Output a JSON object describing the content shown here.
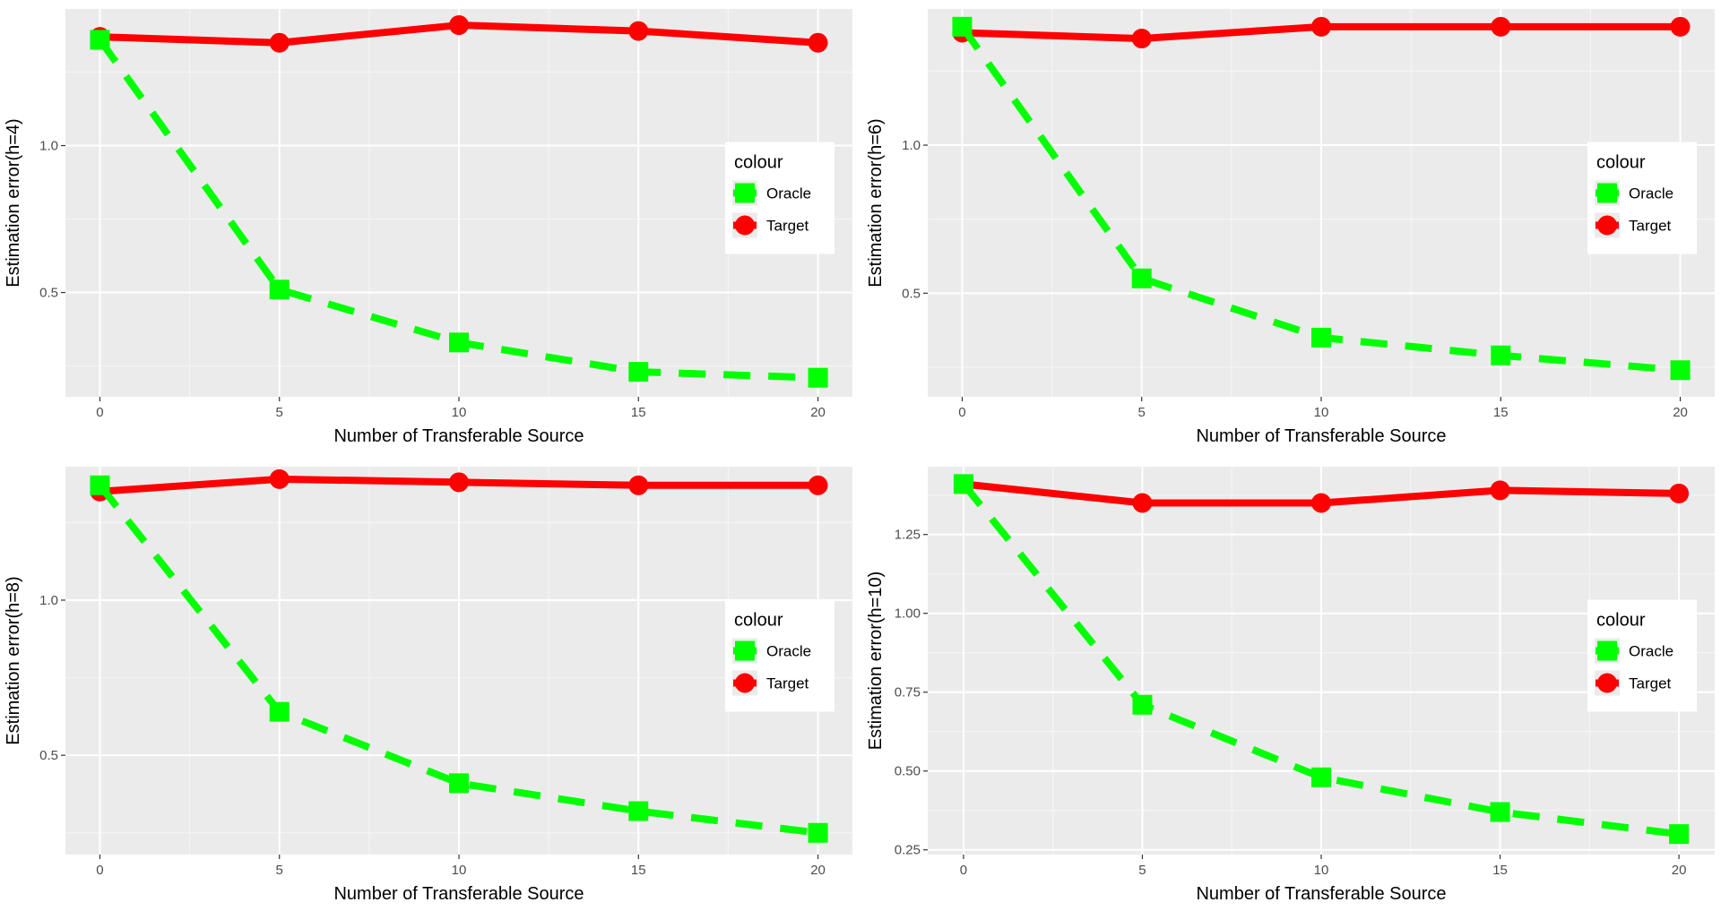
{
  "colors": {
    "oracle": "#00ff00",
    "target": "#ff0000",
    "panel_bg": "#ebebeb",
    "grid_major": "#ffffff",
    "grid_minor": "#f5f5f5"
  },
  "legend": {
    "title": "colour",
    "entries": [
      "Oracle",
      "Target"
    ]
  },
  "chart_data": [
    {
      "type": "line",
      "xlabel": "Number of Transferable Source",
      "ylabel": "Estimation error(h=4)",
      "x": [
        0,
        5,
        10,
        15,
        20
      ],
      "xticks": [
        "0",
        "5",
        "10",
        "15",
        "20"
      ],
      "xlim": [
        -0.96,
        20.96
      ],
      "yticks": [
        0.5,
        1.0
      ],
      "ytick_labels": [
        "0.5",
        "1.0"
      ],
      "ylim": [
        0.145,
        1.465
      ],
      "grid": true,
      "legend": "right",
      "series": [
        {
          "name": "Target",
          "values": [
            1.37,
            1.35,
            1.41,
            1.39,
            1.35
          ]
        },
        {
          "name": "Oracle",
          "values": [
            1.36,
            0.51,
            0.33,
            0.23,
            0.21
          ]
        }
      ]
    },
    {
      "type": "line",
      "xlabel": "Number of Transferable Source",
      "ylabel": "Estimation error(h=6)",
      "x": [
        0,
        5,
        10,
        15,
        20
      ],
      "xticks": [
        "0",
        "5",
        "10",
        "15",
        "20"
      ],
      "xlim": [
        -0.96,
        20.96
      ],
      "yticks": [
        0.5,
        1.0
      ],
      "ytick_labels": [
        "0.5",
        "1.0"
      ],
      "ylim": [
        0.15,
        1.46
      ],
      "grid": true,
      "legend": "right",
      "series": [
        {
          "name": "Target",
          "values": [
            1.38,
            1.36,
            1.4,
            1.4,
            1.4
          ]
        },
        {
          "name": "Oracle",
          "values": [
            1.4,
            0.55,
            0.35,
            0.29,
            0.24
          ]
        }
      ]
    },
    {
      "type": "line",
      "xlabel": "Number of Transferable Source",
      "ylabel": "Estimation error(h=8)",
      "x": [
        0,
        5,
        10,
        15,
        20
      ],
      "xticks": [
        "0",
        "5",
        "10",
        "15",
        "20"
      ],
      "xlim": [
        -0.96,
        20.96
      ],
      "yticks": [
        0.5,
        1.0
      ],
      "ytick_labels": [
        "0.5",
        "1.0"
      ],
      "ylim": [
        0.18,
        1.43
      ],
      "grid": true,
      "legend": "right",
      "series": [
        {
          "name": "Target",
          "values": [
            1.35,
            1.39,
            1.38,
            1.37,
            1.37
          ]
        },
        {
          "name": "Oracle",
          "values": [
            1.37,
            0.64,
            0.41,
            0.32,
            0.25
          ]
        }
      ]
    },
    {
      "type": "line",
      "xlabel": "Number of Transferable Source",
      "ylabel": "Estimation error(h=10)",
      "x": [
        0,
        5,
        10,
        15,
        20
      ],
      "xticks": [
        "0",
        "5",
        "10",
        "15",
        "20"
      ],
      "xlim": [
        -1.0,
        21.0
      ],
      "yticks": [
        0.25,
        0.5,
        0.75,
        1.0,
        1.25
      ],
      "ytick_labels": [
        "0.25",
        "0.50",
        "0.75",
        "1.00",
        "1.25"
      ],
      "ylim": [
        0.235,
        1.465
      ],
      "grid": true,
      "legend": "right",
      "series": [
        {
          "name": "Target",
          "values": [
            1.41,
            1.35,
            1.35,
            1.39,
            1.38
          ]
        },
        {
          "name": "Oracle",
          "values": [
            1.41,
            0.71,
            0.48,
            0.37,
            0.3
          ]
        }
      ]
    }
  ]
}
